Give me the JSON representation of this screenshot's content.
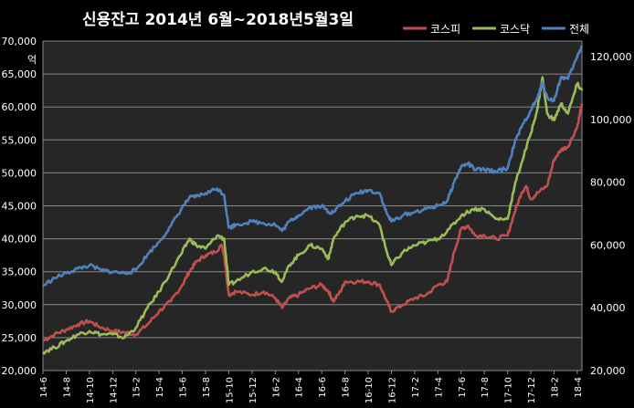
{
  "chart_data": {
    "type": "line",
    "title": "신용잔고 2014년 6월~2018년5월3일",
    "left_axis": {
      "unit": "억",
      "ylim": [
        20000,
        70000
      ],
      "ticks": [
        20000,
        25000,
        30000,
        35000,
        40000,
        45000,
        50000,
        55000,
        60000,
        65000,
        70000
      ],
      "tick_labels": [
        "20,000",
        "25,000",
        "30,000",
        "35,000",
        "40,000",
        "45,000",
        "50,000",
        "55,000",
        "60,000",
        "65,000",
        "70,000"
      ]
    },
    "right_axis": {
      "ylim": [
        20000,
        125000
      ],
      "ticks": [
        20000,
        40000,
        60000,
        80000,
        100000,
        120000
      ],
      "tick_labels": [
        "20,000",
        "40,000",
        "60,000",
        "80,000",
        "100,000",
        "120,000"
      ]
    },
    "x_tick_labels": [
      "14-6",
      "14-8",
      "14-10",
      "14-12",
      "15-2",
      "15-4",
      "15-6",
      "15-8",
      "15-10",
      "15-12",
      "16-2",
      "16-4",
      "16-6",
      "16-8",
      "16-10",
      "16-12",
      "17-2",
      "17-4",
      "17-6",
      "17-8",
      "17-10",
      "17-12",
      "18-2",
      "18-4"
    ],
    "x_range": [
      0,
      23.2
    ],
    "grid": true,
    "legend_position": "top-right",
    "series": [
      {
        "name": "코스피",
        "axis": "left",
        "color": "#c0504d",
        "points": [
          [
            0,
            24500
          ],
          [
            0.5,
            25500
          ],
          [
            1,
            26200
          ],
          [
            1.5,
            27000
          ],
          [
            2,
            27500
          ],
          [
            2.4,
            26700
          ],
          [
            3,
            26000
          ],
          [
            3.5,
            25800
          ],
          [
            4,
            25500
          ],
          [
            4.5,
            27000
          ],
          [
            5,
            29000
          ],
          [
            5.5,
            30500
          ],
          [
            6,
            33000
          ],
          [
            6.3,
            35000
          ],
          [
            6.6,
            36500
          ],
          [
            7,
            37500
          ],
          [
            7.4,
            38000
          ],
          [
            7.7,
            39000
          ],
          [
            7.8,
            37500
          ],
          [
            8.0,
            31500
          ],
          [
            8.3,
            32000
          ],
          [
            9,
            31500
          ],
          [
            9.5,
            32000
          ],
          [
            10,
            31000
          ],
          [
            10.3,
            29500
          ],
          [
            10.6,
            31000
          ],
          [
            11,
            31500
          ],
          [
            11.5,
            32500
          ],
          [
            12,
            33000
          ],
          [
            12.3,
            32000
          ],
          [
            12.5,
            30500
          ],
          [
            12.8,
            32000
          ],
          [
            13,
            33500
          ],
          [
            13.5,
            33500
          ],
          [
            14,
            33500
          ],
          [
            14.5,
            33000
          ],
          [
            14.8,
            30500
          ],
          [
            15,
            29000
          ],
          [
            15.5,
            30000
          ],
          [
            16,
            31000
          ],
          [
            16.5,
            31500
          ],
          [
            17,
            33000
          ],
          [
            17.4,
            33500
          ],
          [
            17.7,
            38000
          ],
          [
            18,
            41500
          ],
          [
            18.3,
            42000
          ],
          [
            18.6,
            40500
          ],
          [
            19,
            40500
          ],
          [
            19.5,
            40000
          ],
          [
            20,
            40500
          ],
          [
            20.3,
            44000
          ],
          [
            20.6,
            47000
          ],
          [
            20.8,
            48000
          ],
          [
            21.0,
            46000
          ],
          [
            21.3,
            47000
          ],
          [
            21.7,
            48000
          ],
          [
            22,
            52000
          ],
          [
            22.3,
            53500
          ],
          [
            22.6,
            54000
          ],
          [
            23,
            57000
          ],
          [
            23.2,
            60500
          ]
        ]
      },
      {
        "name": "코스닥",
        "axis": "left",
        "color": "#9bbb59",
        "points": [
          [
            0,
            22800
          ],
          [
            0.5,
            23500
          ],
          [
            1,
            24500
          ],
          [
            1.5,
            25500
          ],
          [
            2,
            26000
          ],
          [
            2.5,
            25500
          ],
          [
            3,
            25500
          ],
          [
            3.5,
            25000
          ],
          [
            4,
            26500
          ],
          [
            4.5,
            29500
          ],
          [
            5,
            32000
          ],
          [
            5.5,
            35000
          ],
          [
            6,
            38000
          ],
          [
            6.3,
            40000
          ],
          [
            6.6,
            39000
          ],
          [
            7,
            38500
          ],
          [
            7.5,
            40500
          ],
          [
            7.8,
            40000
          ],
          [
            8.0,
            33000
          ],
          [
            8.3,
            33500
          ],
          [
            9,
            35000
          ],
          [
            9.5,
            35500
          ],
          [
            10,
            35000
          ],
          [
            10.3,
            33500
          ],
          [
            10.6,
            36000
          ],
          [
            11,
            37500
          ],
          [
            11.5,
            39000
          ],
          [
            12,
            38500
          ],
          [
            12.3,
            37000
          ],
          [
            12.5,
            40000
          ],
          [
            13,
            42500
          ],
          [
            13.5,
            43500
          ],
          [
            14,
            43500
          ],
          [
            14.5,
            42000
          ],
          [
            14.8,
            38000
          ],
          [
            15,
            36000
          ],
          [
            15.5,
            38000
          ],
          [
            16,
            39000
          ],
          [
            16.5,
            39500
          ],
          [
            17,
            40000
          ],
          [
            17.5,
            41500
          ],
          [
            18,
            43500
          ],
          [
            18.5,
            44500
          ],
          [
            19,
            44500
          ],
          [
            19.5,
            43000
          ],
          [
            20,
            43000
          ],
          [
            20.3,
            48000
          ],
          [
            20.6,
            51500
          ],
          [
            21,
            56000
          ],
          [
            21.3,
            60000
          ],
          [
            21.5,
            64500
          ],
          [
            21.7,
            59000
          ],
          [
            22,
            58000
          ],
          [
            22.3,
            60500
          ],
          [
            22.6,
            59000
          ],
          [
            23,
            63500
          ],
          [
            23.2,
            62500
          ]
        ]
      },
      {
        "name": "전체",
        "axis": "right",
        "color": "#4f81bd",
        "points": [
          [
            0,
            47000
          ],
          [
            0.5,
            49500
          ],
          [
            1,
            51000
          ],
          [
            1.5,
            52500
          ],
          [
            2,
            53500
          ],
          [
            2.5,
            52000
          ],
          [
            3,
            51500
          ],
          [
            3.5,
            51000
          ],
          [
            4,
            52000
          ],
          [
            4.5,
            57000
          ],
          [
            5,
            61000
          ],
          [
            5.5,
            66000
          ],
          [
            6,
            72000
          ],
          [
            6.3,
            75000
          ],
          [
            6.6,
            75500
          ],
          [
            7,
            76500
          ],
          [
            7.5,
            78000
          ],
          [
            7.8,
            76000
          ],
          [
            8.0,
            65500
          ],
          [
            8.3,
            66500
          ],
          [
            9,
            67500
          ],
          [
            9.5,
            67000
          ],
          [
            10,
            66500
          ],
          [
            10.3,
            64500
          ],
          [
            10.6,
            67500
          ],
          [
            11,
            69500
          ],
          [
            11.5,
            72000
          ],
          [
            12,
            72500
          ],
          [
            12.3,
            70500
          ],
          [
            12.5,
            70500
          ],
          [
            13,
            74000
          ],
          [
            13.5,
            76500
          ],
          [
            14,
            77500
          ],
          [
            14.5,
            76500
          ],
          [
            14.8,
            70000
          ],
          [
            15,
            67500
          ],
          [
            15.5,
            69500
          ],
          [
            16,
            70500
          ],
          [
            16.5,
            71500
          ],
          [
            17,
            72500
          ],
          [
            17.4,
            74000
          ],
          [
            17.7,
            80000
          ],
          [
            18,
            85000
          ],
          [
            18.3,
            86000
          ],
          [
            18.6,
            84000
          ],
          [
            19,
            84000
          ],
          [
            19.5,
            83500
          ],
          [
            20,
            84500
          ],
          [
            20.3,
            92500
          ],
          [
            20.6,
            97500
          ],
          [
            21,
            103000
          ],
          [
            21.3,
            107000
          ],
          [
            21.5,
            112000
          ],
          [
            21.7,
            107000
          ],
          [
            22,
            106000
          ],
          [
            22.3,
            113500
          ],
          [
            22.6,
            113000
          ],
          [
            23,
            120000
          ],
          [
            23.2,
            123500
          ]
        ]
      }
    ]
  }
}
